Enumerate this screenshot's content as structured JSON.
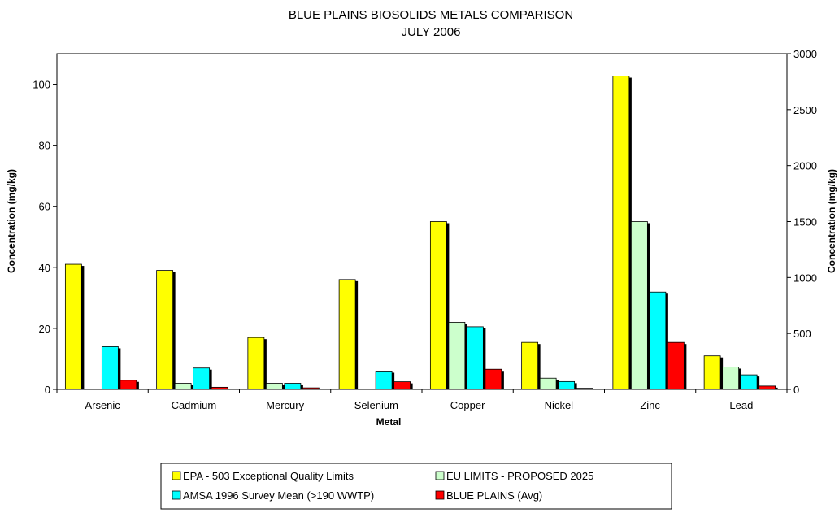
{
  "chart_data": {
    "type": "bar",
    "title": "BLUE PLAINS BIOSOLIDS METALS COMPARISON",
    "subtitle": "JULY  2006",
    "xlabel": "Metal",
    "ylabel_left": "Concentration (mg/kg)",
    "ylabel_right": "Concentration (mg/kg)",
    "ylim_left": [
      0,
      110
    ],
    "ylim_right": [
      0,
      3000
    ],
    "yticks_left": [
      "0",
      "20",
      "40",
      "60",
      "80",
      "100"
    ],
    "yticks_right": [
      "0",
      "500",
      "1000",
      "1500",
      "2000",
      "2500",
      "3000"
    ],
    "categories": [
      "Arsenic",
      "Cadmium",
      "Mercury",
      "Selenium",
      "Copper",
      "Nickel",
      "Zinc",
      "Lead"
    ],
    "category_axis": [
      "left",
      "left",
      "left",
      "left",
      "right",
      "right",
      "right",
      "right"
    ],
    "grid": false,
    "legend_position": "bottom",
    "series": [
      {
        "name": "EPA - 503 Exceptional Quality Limits",
        "color": "#ffff00",
        "values": [
          41,
          39,
          17,
          36,
          1500,
          420,
          2800,
          300
        ]
      },
      {
        "name": "EU LIMITS - PROPOSED 2025",
        "color": "#ccffcc",
        "values": [
          null,
          2,
          2,
          null,
          600,
          100,
          1500,
          200
        ]
      },
      {
        "name": "AMSA 1996 Survey Mean (>190 WWTP)",
        "color": "#00ffff",
        "values": [
          14,
          7,
          2,
          6,
          560,
          70,
          870,
          130
        ]
      },
      {
        "name": "BLUE PLAINS (Avg)",
        "color": "#ff0000",
        "values": [
          3,
          0.7,
          0.5,
          2.5,
          180,
          10,
          420,
          30
        ]
      }
    ]
  }
}
